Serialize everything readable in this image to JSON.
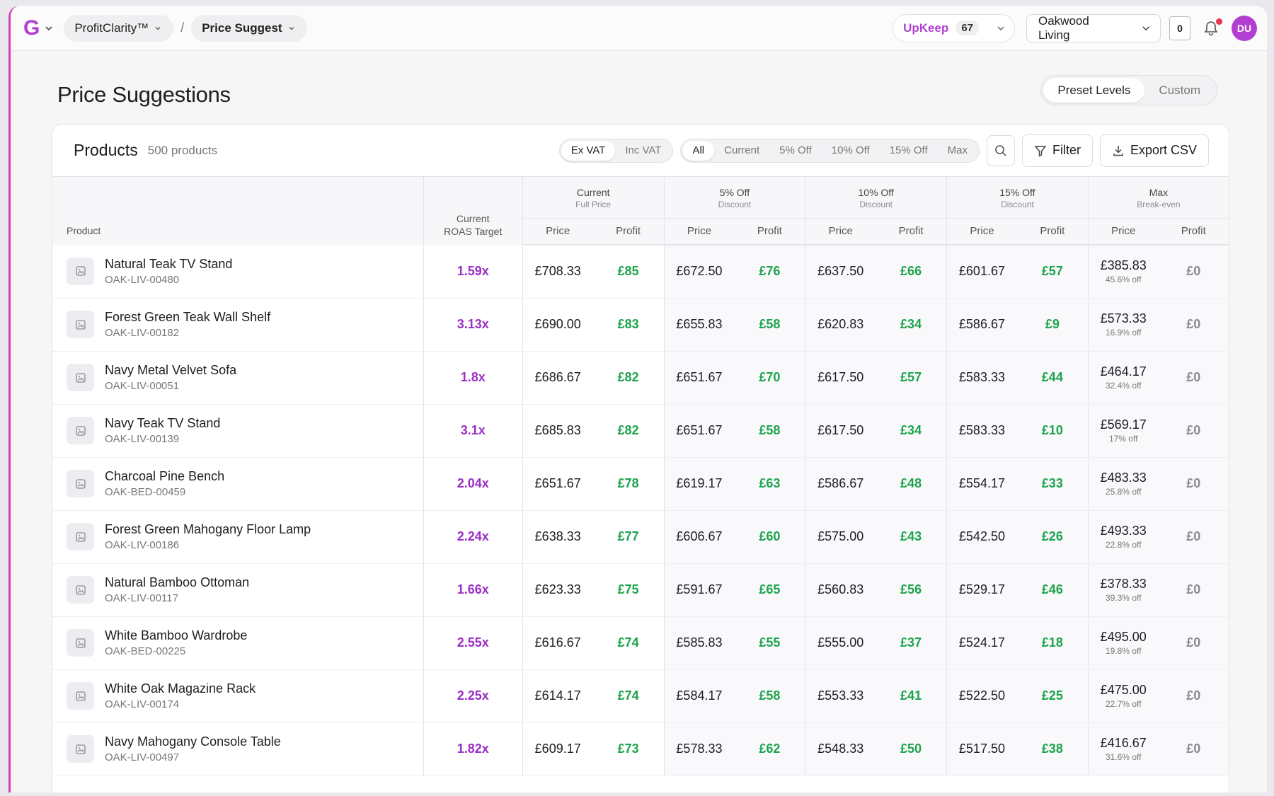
{
  "topbar": {
    "logo": "G",
    "app_name": "ProfitClarity™",
    "separator": "/",
    "section": "Price Suggest",
    "upkeep_label": "UpKeep",
    "upkeep_count": "67",
    "store": "Oakwood Living",
    "cart_count": "0",
    "avatar_initials": "DU"
  },
  "page": {
    "title": "Price Suggestions",
    "mode_tabs": [
      "Preset Levels",
      "Custom"
    ],
    "active_mode": "Preset Levels"
  },
  "card": {
    "title": "Products",
    "count": "500 products",
    "vat_options": [
      "Ex VAT",
      "Inc VAT"
    ],
    "level_options": [
      "All",
      "Current",
      "5% Off",
      "10% Off",
      "15% Off",
      "Max"
    ],
    "filter_label": "Filter",
    "export_label": "Export CSV"
  },
  "table": {
    "product_header": "Product",
    "roas_header_1": "Current",
    "roas_header_2": "ROAS Target",
    "price_label": "Price",
    "profit_label": "Profit",
    "groups": [
      {
        "title": "Current",
        "subtitle": "Full Price"
      },
      {
        "title": "5% Off",
        "subtitle": "Discount"
      },
      {
        "title": "10% Off",
        "subtitle": "Discount"
      },
      {
        "title": "15% Off",
        "subtitle": "Discount"
      },
      {
        "title": "Max",
        "subtitle": "Break-even"
      }
    ],
    "rows": [
      {
        "name": "Natural Teak TV Stand",
        "sku": "OAK-LIV-00480",
        "roas": "1.59x",
        "cells": [
          [
            "£708.33",
            "£85"
          ],
          [
            "£672.50",
            "£76"
          ],
          [
            "£637.50",
            "£66"
          ],
          [
            "£601.67",
            "£57"
          ]
        ],
        "max_price": "£385.83",
        "max_off": "45.6% off",
        "max_profit": "£0"
      },
      {
        "name": "Forest Green Teak Wall Shelf",
        "sku": "OAK-LIV-00182",
        "roas": "3.13x",
        "cells": [
          [
            "£690.00",
            "£83"
          ],
          [
            "£655.83",
            "£58"
          ],
          [
            "£620.83",
            "£34"
          ],
          [
            "£586.67",
            "£9"
          ]
        ],
        "max_price": "£573.33",
        "max_off": "16.9% off",
        "max_profit": "£0"
      },
      {
        "name": "Navy Metal Velvet Sofa",
        "sku": "OAK-LIV-00051",
        "roas": "1.8x",
        "cells": [
          [
            "£686.67",
            "£82"
          ],
          [
            "£651.67",
            "£70"
          ],
          [
            "£617.50",
            "£57"
          ],
          [
            "£583.33",
            "£44"
          ]
        ],
        "max_price": "£464.17",
        "max_off": "32.4% off",
        "max_profit": "£0"
      },
      {
        "name": "Navy Teak TV Stand",
        "sku": "OAK-LIV-00139",
        "roas": "3.1x",
        "cells": [
          [
            "£685.83",
            "£82"
          ],
          [
            "£651.67",
            "£58"
          ],
          [
            "£617.50",
            "£34"
          ],
          [
            "£583.33",
            "£10"
          ]
        ],
        "max_price": "£569.17",
        "max_off": "17% off",
        "max_profit": "£0"
      },
      {
        "name": "Charcoal Pine Bench",
        "sku": "OAK-BED-00459",
        "roas": "2.04x",
        "cells": [
          [
            "£651.67",
            "£78"
          ],
          [
            "£619.17",
            "£63"
          ],
          [
            "£586.67",
            "£48"
          ],
          [
            "£554.17",
            "£33"
          ]
        ],
        "max_price": "£483.33",
        "max_off": "25.8% off",
        "max_profit": "£0"
      },
      {
        "name": "Forest Green Mahogany Floor Lamp",
        "sku": "OAK-LIV-00186",
        "roas": "2.24x",
        "cells": [
          [
            "£638.33",
            "£77"
          ],
          [
            "£606.67",
            "£60"
          ],
          [
            "£575.00",
            "£43"
          ],
          [
            "£542.50",
            "£26"
          ]
        ],
        "max_price": "£493.33",
        "max_off": "22.8% off",
        "max_profit": "£0"
      },
      {
        "name": "Natural Bamboo Ottoman",
        "sku": "OAK-LIV-00117",
        "roas": "1.66x",
        "cells": [
          [
            "£623.33",
            "£75"
          ],
          [
            "£591.67",
            "£65"
          ],
          [
            "£560.83",
            "£56"
          ],
          [
            "£529.17",
            "£46"
          ]
        ],
        "max_price": "£378.33",
        "max_off": "39.3% off",
        "max_profit": "£0"
      },
      {
        "name": "White Bamboo Wardrobe",
        "sku": "OAK-BED-00225",
        "roas": "2.55x",
        "cells": [
          [
            "£616.67",
            "£74"
          ],
          [
            "£585.83",
            "£55"
          ],
          [
            "£555.00",
            "£37"
          ],
          [
            "£524.17",
            "£18"
          ]
        ],
        "max_price": "£495.00",
        "max_off": "19.8% off",
        "max_profit": "£0"
      },
      {
        "name": "White Oak Magazine Rack",
        "sku": "OAK-LIV-00174",
        "roas": "2.25x",
        "cells": [
          [
            "£614.17",
            "£74"
          ],
          [
            "£584.17",
            "£58"
          ],
          [
            "£553.33",
            "£41"
          ],
          [
            "£522.50",
            "£25"
          ]
        ],
        "max_price": "£475.00",
        "max_off": "22.7% off",
        "max_profit": "£0"
      },
      {
        "name": "Navy Mahogany Console Table",
        "sku": "OAK-LIV-00497",
        "roas": "1.82x",
        "cells": [
          [
            "£609.17",
            "£73"
          ],
          [
            "£578.33",
            "£62"
          ],
          [
            "£548.33",
            "£50"
          ],
          [
            "£517.50",
            "£38"
          ]
        ],
        "max_price": "£416.67",
        "max_off": "31.6% off",
        "max_profit": "£0"
      }
    ]
  }
}
